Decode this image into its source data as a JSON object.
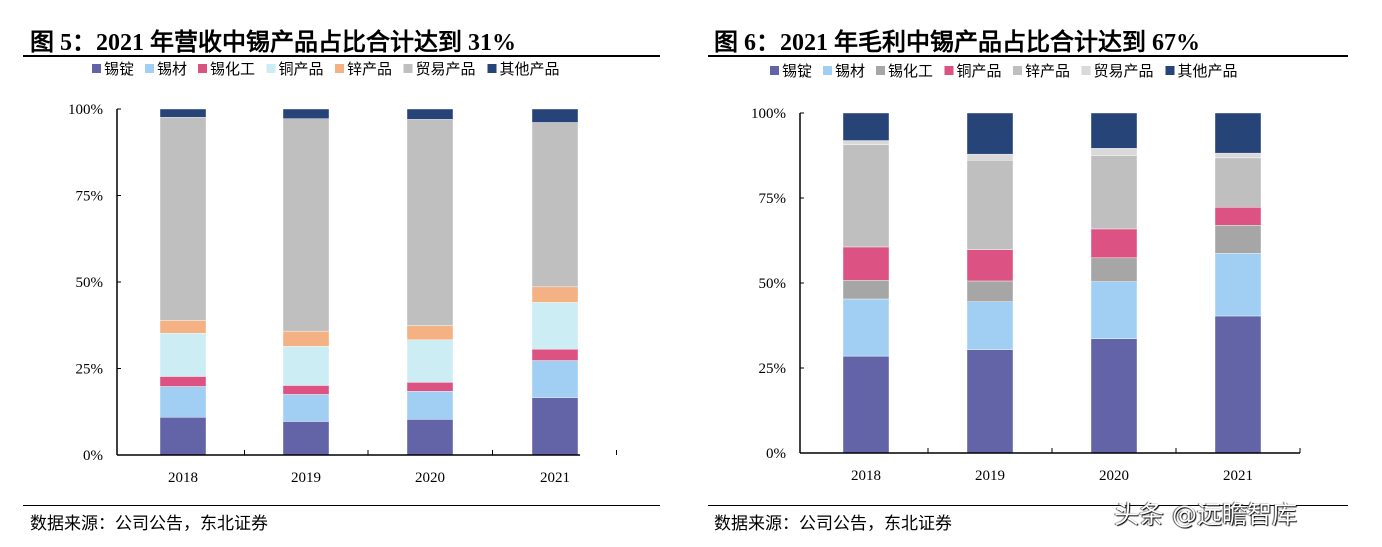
{
  "chart_data": [
    {
      "type": "bar",
      "stacked": true,
      "title": "图 5：2021 年营收中锡产品占比合计达到 31%",
      "source": "数据来源：公司公告，东北证券",
      "categories": [
        "2018",
        "2019",
        "2020",
        "2021"
      ],
      "ylim": [
        0,
        100
      ],
      "yticks": [
        "0%",
        "25%",
        "50%",
        "75%",
        "100%"
      ],
      "legend_position": "top",
      "grid": false,
      "series": [
        {
          "name": "锡锭",
          "color": "#6264a7",
          "values": [
            10.9,
            9.7,
            10.3,
            16.6
          ]
        },
        {
          "name": "锡材",
          "color": "#a0cff3",
          "values": [
            8.9,
            7.8,
            8.1,
            10.7
          ]
        },
        {
          "name": "锡化工",
          "color": "#dc5282",
          "values": [
            2.9,
            2.6,
            2.6,
            3.3
          ]
        },
        {
          "name": "铜产品",
          "color": "#cdedf4",
          "values": [
            12.5,
            11.3,
            12.3,
            13.5
          ]
        },
        {
          "name": "锌产品",
          "color": "#f4b183",
          "values": [
            3.7,
            4.4,
            4.1,
            4.5
          ]
        },
        {
          "name": "贸易产品",
          "color": "#bfbfbf",
          "values": [
            58.7,
            61.4,
            59.6,
            47.5
          ]
        },
        {
          "name": "其他产品",
          "color": "#264478",
          "values": [
            2.4,
            2.8,
            3.0,
            3.9
          ]
        }
      ]
    },
    {
      "type": "bar",
      "stacked": true,
      "title": "图 6：2021 年毛利中锡产品占比合计达到 67%",
      "source": "数据来源：公司公告，东北证券",
      "categories": [
        "2018",
        "2019",
        "2020",
        "2021"
      ],
      "ylim": [
        0,
        100
      ],
      "yticks": [
        "0%",
        "25%",
        "50%",
        "75%",
        "100%"
      ],
      "legend_position": "top",
      "grid": false,
      "series": [
        {
          "name": "锡锭",
          "color": "#6264a7",
          "values": [
            28.5,
            30.4,
            33.6,
            40.3
          ]
        },
        {
          "name": "锡材",
          "color": "#a0cff3",
          "values": [
            16.8,
            14.1,
            16.8,
            18.4
          ]
        },
        {
          "name": "锡化工",
          "color": "#a6a6a6",
          "values": [
            5.5,
            6.1,
            7.0,
            8.3
          ]
        },
        {
          "name": "铜产品",
          "color": "#dc5282",
          "values": [
            9.8,
            9.2,
            8.5,
            5.3
          ]
        },
        {
          "name": "锌产品",
          "color": "#bfbfbf",
          "values": [
            30.1,
            26.3,
            21.6,
            14.5
          ]
        },
        {
          "name": "贸易产品",
          "color": "#d9d9d9",
          "values": [
            1.2,
            1.8,
            2.1,
            1.4
          ]
        },
        {
          "name": "其他产品",
          "color": "#264478",
          "values": [
            8.1,
            12.1,
            10.4,
            11.8
          ]
        }
      ]
    }
  ],
  "watermark": "头条 @远瞻智库"
}
